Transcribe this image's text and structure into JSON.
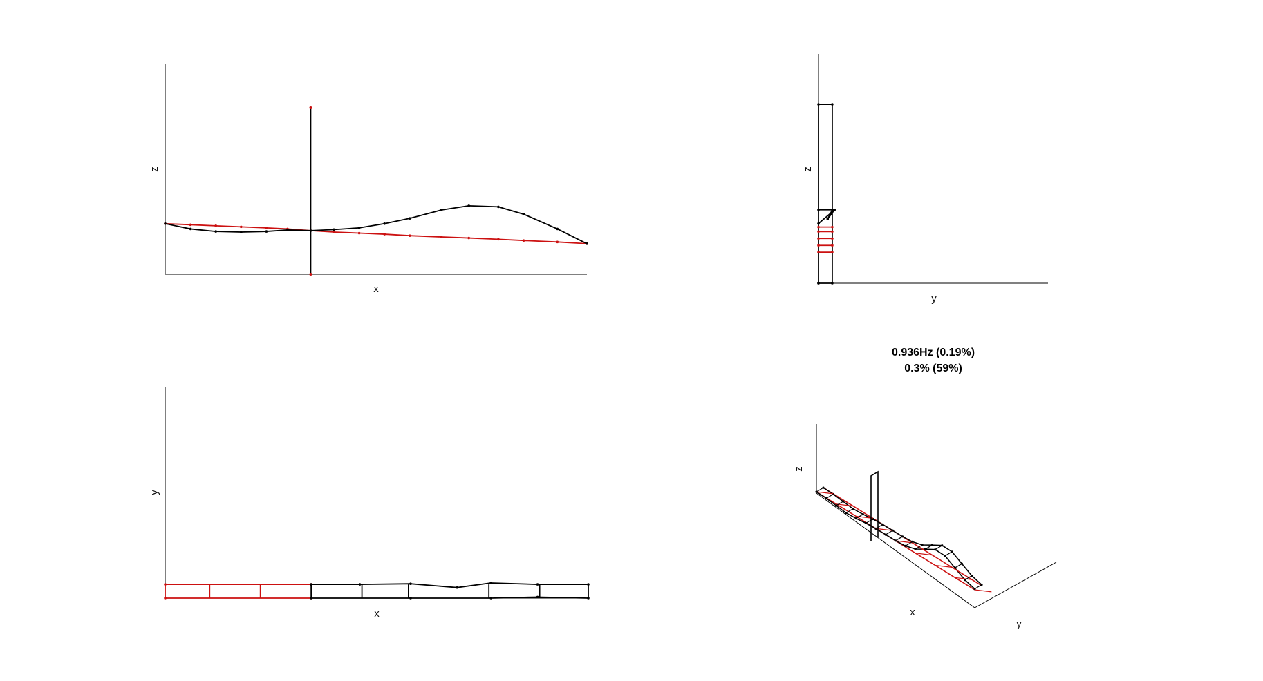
{
  "figure": {
    "title_line1": "0.936Hz (0.19%)",
    "title_line2": "0.3% (59%)"
  },
  "colors": {
    "deformed": "#000000",
    "undeformed": "#cc1111",
    "axis": "#000000"
  },
  "chart_data": [
    {
      "type": "line",
      "view": "x-z elevation",
      "xlabel": "x",
      "ylabel": "z",
      "grid": false,
      "series": [
        {
          "role": "undeformed",
          "color": "#cc1111",
          "x": [
            0,
            0.06,
            0.12,
            0.18,
            0.24,
            0.29,
            0.345,
            0.4,
            0.46,
            0.52,
            0.58,
            0.655,
            0.72,
            0.79,
            0.85,
            0.93,
            1.0
          ],
          "z": [
            0.24,
            0.235,
            0.23,
            0.225,
            0.22,
            0.215,
            0.207,
            0.2,
            0.195,
            0.19,
            0.183,
            0.177,
            0.172,
            0.166,
            0.16,
            0.153,
            0.145
          ]
        },
        {
          "role": "deformed",
          "color": "#000000",
          "x": [
            0,
            0.06,
            0.12,
            0.18,
            0.24,
            0.29,
            0.345,
            0.4,
            0.46,
            0.52,
            0.58,
            0.655,
            0.72,
            0.79,
            0.85,
            0.93,
            1.0
          ],
          "z": [
            0.24,
            0.215,
            0.203,
            0.2,
            0.203,
            0.21,
            0.207,
            0.212,
            0.22,
            0.24,
            0.265,
            0.305,
            0.325,
            0.32,
            0.285,
            0.215,
            0.145
          ]
        },
        {
          "role": "deformed",
          "color": "#000000",
          "x": [
            0.345,
            0.345
          ],
          "z": [
            0.0,
            0.79
          ]
        }
      ]
    },
    {
      "type": "line",
      "view": "y-z elevation",
      "xlabel": "y",
      "ylabel": "z",
      "grid": false,
      "series": [
        {
          "role": "deformed",
          "color": "#000000",
          "y": [
            0.0,
            0.0,
            0.06,
            0.06,
            0.0
          ],
          "z": [
            0.0,
            0.78,
            0.78,
            0.0,
            0.0
          ]
        },
        {
          "role": "deformed",
          "color": "#000000",
          "y": [
            0.0,
            0.06,
            0.04,
            0.07,
            0.0
          ],
          "z": [
            0.32,
            0.32,
            0.28,
            0.32,
            0.26
          ]
        },
        {
          "role": "undeformed",
          "color": "#cc1111",
          "y": [
            0.0,
            0.06
          ],
          "z": [
            0.135,
            0.135
          ]
        },
        {
          "role": "undeformed",
          "color": "#cc1111",
          "y": [
            0.0,
            0.06
          ],
          "z": [
            0.165,
            0.165
          ]
        },
        {
          "role": "undeformed",
          "color": "#cc1111",
          "y": [
            0.0,
            0.06
          ],
          "z": [
            0.195,
            0.195
          ]
        },
        {
          "role": "undeformed",
          "color": "#cc1111",
          "y": [
            0.0,
            0.06
          ],
          "z": [
            0.225,
            0.225
          ]
        },
        {
          "role": "undeformed",
          "color": "#cc1111",
          "y": [
            0.0,
            0.06
          ],
          "z": [
            0.245,
            0.245
          ]
        }
      ]
    },
    {
      "type": "line",
      "view": "x-y plan",
      "xlabel": "x",
      "ylabel": "y",
      "grid": false,
      "series": [
        {
          "role": "undeformed",
          "color": "#cc1111",
          "x": [
            0,
            0.345
          ],
          "y": [
            0.065,
            0.065
          ]
        },
        {
          "role": "undeformed",
          "color": "#cc1111",
          "x": [
            0,
            0.345
          ],
          "y": [
            0.0,
            0.0
          ]
        },
        {
          "role": "deformed",
          "color": "#000000",
          "x": [
            0.345,
            0.46,
            0.58,
            0.69,
            0.77,
            0.88,
            1.0
          ],
          "y": [
            0.065,
            0.065,
            0.068,
            0.05,
            0.072,
            0.065,
            0.065
          ]
        },
        {
          "role": "deformed",
          "color": "#000000",
          "x": [
            0.345,
            0.58,
            0.77,
            0.88,
            1.0
          ],
          "y": [
            0.0,
            0.0,
            0.0,
            0.005,
            0.0
          ]
        }
      ],
      "rungs_x": [
        0,
        0.105,
        0.225,
        0.345,
        0.465,
        0.575,
        0.765,
        0.885,
        1.0
      ]
    },
    {
      "type": "line",
      "view": "3D isometric",
      "xlabel": "x",
      "ylabel": "y",
      "zlabel": "z",
      "grid": false
    }
  ]
}
